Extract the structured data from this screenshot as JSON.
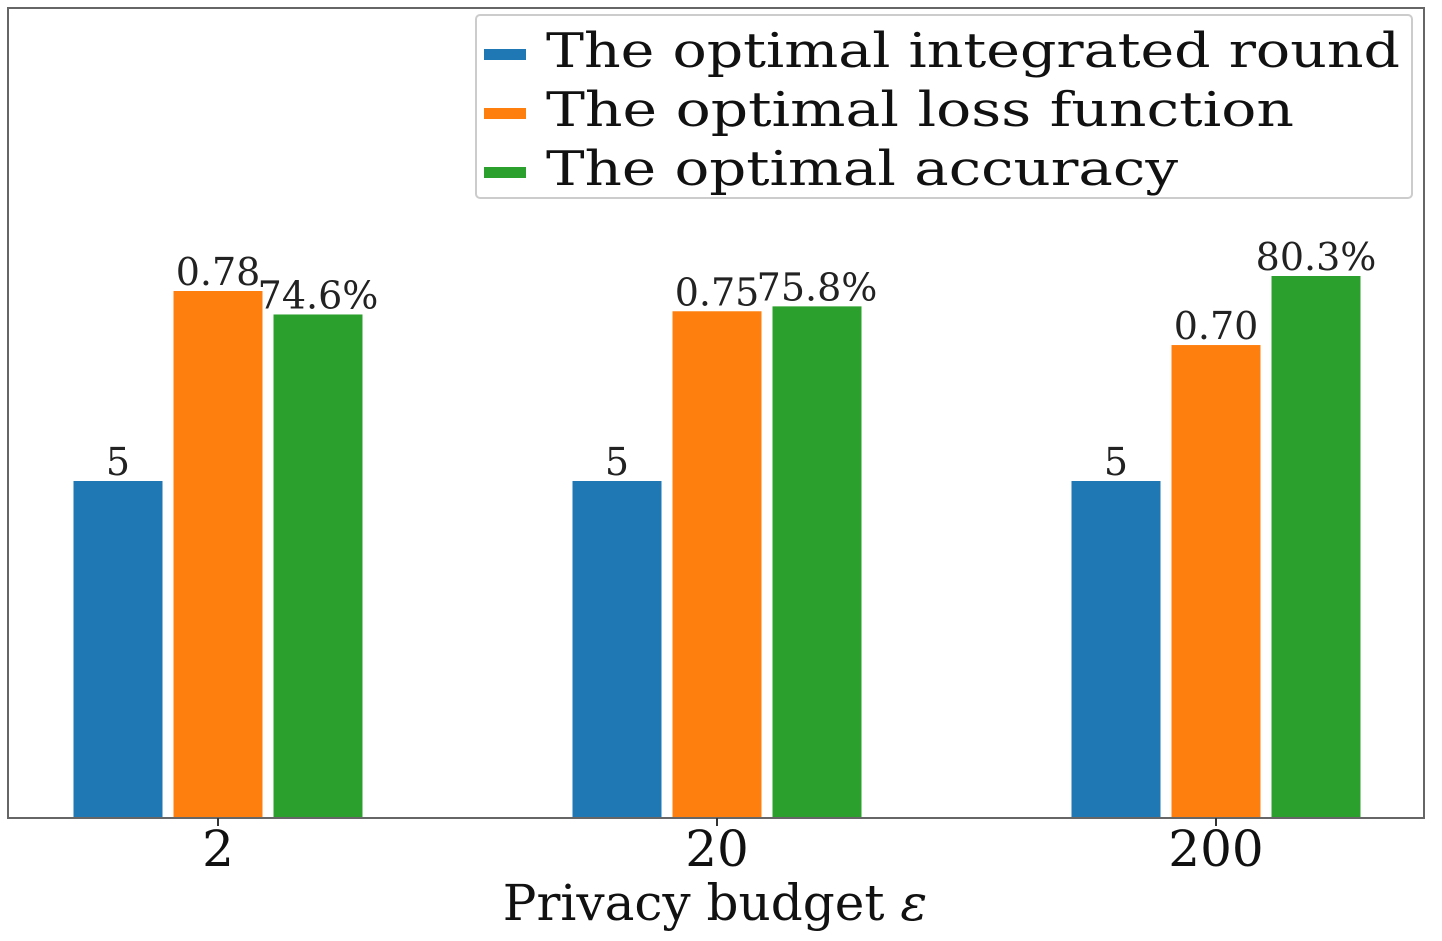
{
  "chart_data": {
    "type": "bar",
    "title": "",
    "xlabel": "Privacy budget",
    "xlabel_symbol": "ε",
    "ylabel": "",
    "categories": [
      "2",
      "20",
      "200"
    ],
    "series": [
      {
        "name": "The optimal integrated round",
        "color": "#1f77b4",
        "values": [
          5,
          5,
          5
        ],
        "labels": [
          "5",
          "5",
          "5"
        ]
      },
      {
        "name": "The optimal loss function",
        "color": "#ff7f0e",
        "values": [
          0.78,
          0.75,
          0.7
        ],
        "labels": [
          "0.78",
          "0.75",
          "0.70"
        ]
      },
      {
        "name": "The optimal accuracy",
        "color": "#2ca02c",
        "values": [
          74.6,
          75.8,
          80.3
        ],
        "labels": [
          "74.6%",
          "75.8%",
          "80.3%"
        ]
      }
    ],
    "grid": false,
    "legend_position": "top-right"
  }
}
